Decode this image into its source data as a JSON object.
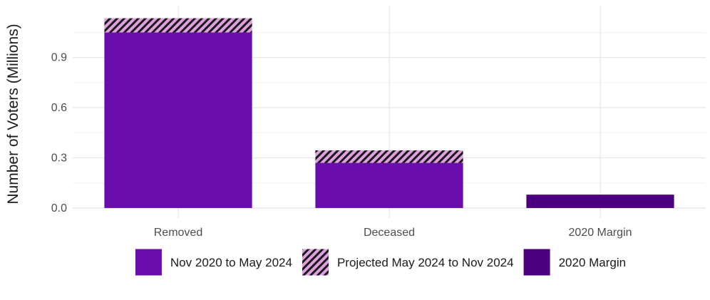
{
  "chart_data": {
    "type": "bar",
    "stacked": true,
    "categories": [
      "Removed",
      "Deceased",
      "2020 Margin"
    ],
    "series": [
      {
        "name": "Nov 2020 to May 2024",
        "values": [
          1.05,
          0.27,
          0
        ],
        "color": "#6a0dad",
        "pattern": "solid"
      },
      {
        "name": "Projected May 2024 to Nov 2024",
        "values": [
          0.085,
          0.075,
          0
        ],
        "color": "#e0a0e0",
        "pattern": "diagonal-hatch"
      },
      {
        "name": "2020 Margin",
        "values": [
          0,
          0,
          0.08
        ],
        "color": "#4b0082",
        "pattern": "solid"
      }
    ],
    "ylabel": "Number of Voters (Millions)",
    "xlabel": "",
    "ylim": [
      -0.06,
      1.21
    ],
    "yticks": [
      "0.0",
      "0.3",
      "0.6",
      "0.9"
    ],
    "grid": true,
    "legend_position": "bottom"
  }
}
